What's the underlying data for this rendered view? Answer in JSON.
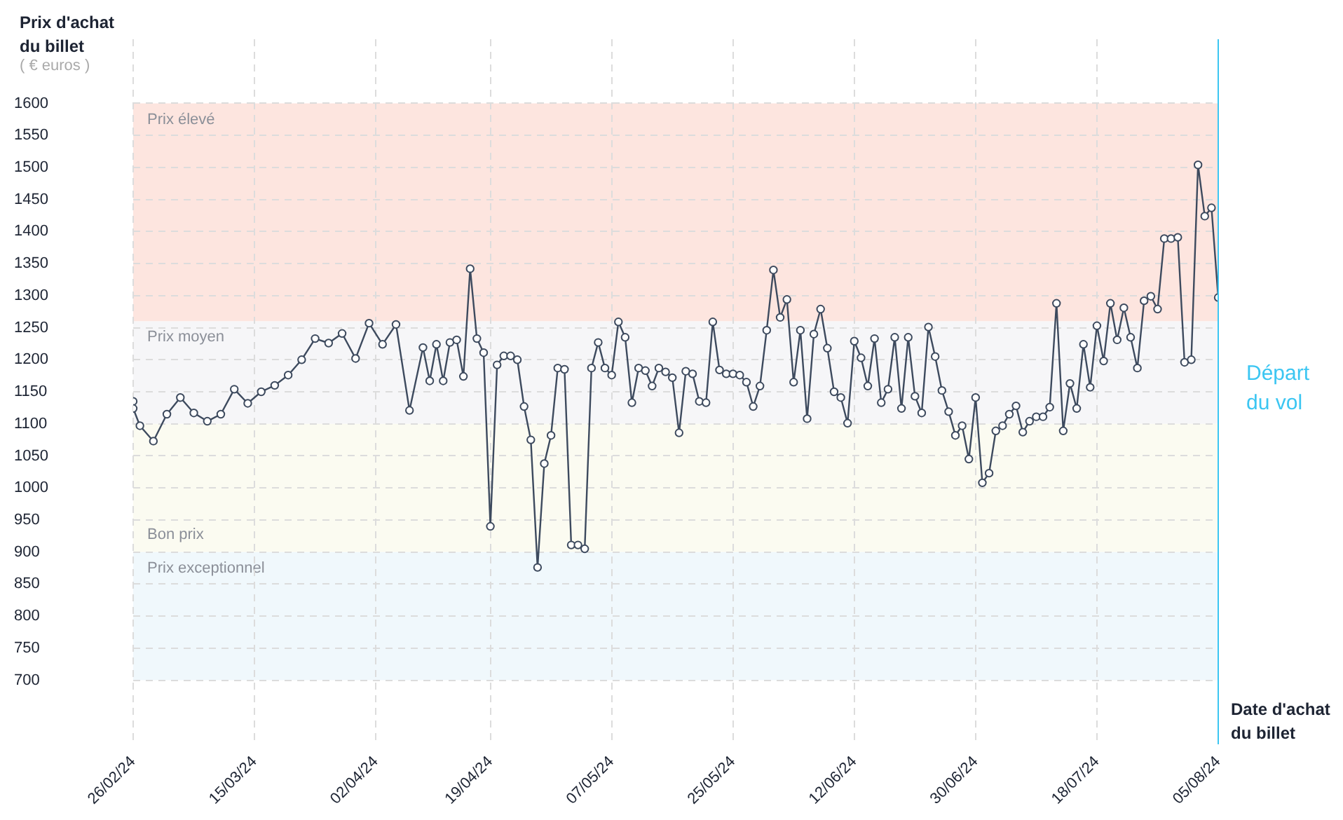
{
  "chart_data": {
    "type": "line",
    "ylabel": "Prix d'achat du billet",
    "xlabel": "Date d'achat du billet",
    "annotations": [
      "( € euros )"
    ],
    "x": [
      "2024-02-26",
      "2024-02-26",
      "2024-02-27",
      "2024-02-29",
      "2024-03-02",
      "2024-03-04",
      "2024-03-06",
      "2024-03-08",
      "2024-03-10",
      "2024-03-12",
      "2024-03-14",
      "2024-03-16",
      "2024-03-18",
      "2024-03-20",
      "2024-03-22",
      "2024-03-24",
      "2024-03-26",
      "2024-03-28",
      "2024-03-30",
      "2024-04-01",
      "2024-04-03",
      "2024-04-05",
      "2024-04-07",
      "2024-04-09",
      "2024-04-10",
      "2024-04-11",
      "2024-04-12",
      "2024-04-13",
      "2024-04-14",
      "2024-04-15",
      "2024-04-16",
      "2024-04-17",
      "2024-04-18",
      "2024-04-19",
      "2024-04-20",
      "2024-04-21",
      "2024-04-22",
      "2024-04-23",
      "2024-04-24",
      "2024-04-25",
      "2024-04-26",
      "2024-04-27",
      "2024-04-28",
      "2024-04-29",
      "2024-04-30",
      "2024-05-01",
      "2024-05-02",
      "2024-05-03",
      "2024-05-04",
      "2024-05-05",
      "2024-05-06",
      "2024-05-07",
      "2024-05-08",
      "2024-05-09",
      "2024-05-10",
      "2024-05-11",
      "2024-05-12",
      "2024-05-13",
      "2024-05-14",
      "2024-05-15",
      "2024-05-16",
      "2024-05-17",
      "2024-05-18",
      "2024-05-19",
      "2024-05-20",
      "2024-05-21",
      "2024-05-22",
      "2024-05-23",
      "2024-05-24",
      "2024-05-25",
      "2024-05-26",
      "2024-05-27",
      "2024-05-28",
      "2024-05-29",
      "2024-05-30",
      "2024-05-31",
      "2024-06-01",
      "2024-06-02",
      "2024-06-03",
      "2024-06-04",
      "2024-06-05",
      "2024-06-06",
      "2024-06-07",
      "2024-06-08",
      "2024-06-09",
      "2024-06-10",
      "2024-06-11",
      "2024-06-12",
      "2024-06-13",
      "2024-06-14",
      "2024-06-15",
      "2024-06-16",
      "2024-06-17",
      "2024-06-18",
      "2024-06-19",
      "2024-06-20",
      "2024-06-21",
      "2024-06-22",
      "2024-06-23",
      "2024-06-24",
      "2024-06-25",
      "2024-06-26",
      "2024-06-27",
      "2024-06-28",
      "2024-06-29",
      "2024-06-30",
      "2024-07-01",
      "2024-07-02",
      "2024-07-03",
      "2024-07-04",
      "2024-07-05",
      "2024-07-06",
      "2024-07-07",
      "2024-07-08",
      "2024-07-09",
      "2024-07-10",
      "2024-07-11",
      "2024-07-12",
      "2024-07-13",
      "2024-07-14",
      "2024-07-15",
      "2024-07-16",
      "2024-07-17",
      "2024-07-18",
      "2024-07-19",
      "2024-07-20",
      "2024-07-21",
      "2024-07-22",
      "2024-07-23",
      "2024-07-24",
      "2024-07-25",
      "2024-07-26",
      "2024-07-27",
      "2024-07-28",
      "2024-07-29",
      "2024-07-30",
      "2024-07-31",
      "2024-08-01",
      "2024-08-02",
      "2024-08-03",
      "2024-08-04",
      "2024-08-05"
    ],
    "values": [
      1135,
      1124,
      1097,
      1073,
      1115,
      1141,
      1117,
      1104,
      1115,
      1154,
      1132,
      1150,
      1160,
      1176,
      1200,
      1233,
      1226,
      1241,
      1202,
      1257,
      1224,
      1255,
      1121,
      1219,
      1167,
      1224,
      1167,
      1227,
      1231,
      1174,
      1342,
      1233,
      1211,
      940,
      1192,
      1206,
      1206,
      1200,
      1127,
      1075,
      876,
      1038,
      1082,
      1187,
      1185,
      911,
      911,
      905,
      1187,
      1227,
      1187,
      1176,
      1259,
      1235,
      1133,
      1187,
      1183,
      1159,
      1187,
      1181,
      1172,
      1086,
      1182,
      1178,
      1135,
      1133,
      1259,
      1184,
      1178,
      1178,
      1176,
      1165,
      1127,
      1159,
      1246,
      1340,
      1266,
      1294,
      1165,
      1246,
      1108,
      1240,
      1279,
      1218,
      1150,
      1141,
      1101,
      1229,
      1203,
      1159,
      1233,
      1133,
      1154,
      1235,
      1124,
      1235,
      1143,
      1117,
      1251,
      1205,
      1152,
      1119,
      1082,
      1097,
      1045,
      1141,
      1008,
      1023,
      1089,
      1097,
      1115,
      1128,
      1087,
      1104,
      1111,
      1111,
      1126,
      1288,
      1089,
      1163,
      1124,
      1224,
      1157,
      1253,
      1198,
      1288,
      1231,
      1281,
      1235,
      1187,
      1292,
      1299,
      1279,
      1389,
      1389,
      1391,
      1196,
      1200,
      1504,
      1424,
      1437,
      1297
    ],
    "color": "#3d4a5e",
    "marker": "circle",
    "grid": true,
    "xlim": [
      "2024-02-26",
      "2024-08-05"
    ],
    "xticks": [
      {
        "value": "2024-02-26",
        "label": "26/02/24"
      },
      {
        "value": "2024-03-15",
        "label": "15/03/24"
      },
      {
        "value": "2024-04-02",
        "label": "02/04/24"
      },
      {
        "value": "2024-04-19",
        "label": "19/04/24"
      },
      {
        "value": "2024-05-07",
        "label": "07/05/24"
      },
      {
        "value": "2024-05-25",
        "label": "25/05/24"
      },
      {
        "value": "2024-06-12",
        "label": "12/06/24"
      },
      {
        "value": "2024-06-30",
        "label": "30/06/24"
      },
      {
        "value": "2024-07-18",
        "label": "18/07/24"
      },
      {
        "value": "2024-08-05",
        "label": "05/08/24"
      }
    ],
    "ylim": [
      600,
      1700
    ],
    "yticks": [
      700,
      750,
      800,
      850,
      900,
      950,
      1000,
      1050,
      1100,
      1150,
      1200,
      1250,
      1300,
      1350,
      1400,
      1450,
      1500,
      1550,
      1600
    ],
    "bands": [
      {
        "axis": "y",
        "from": 1260,
        "to": 1600,
        "label": "Prix élevé",
        "color": "#fde5df"
      },
      {
        "axis": "y",
        "from": 1100,
        "to": 1260,
        "label": "Prix moyen",
        "color": "#f6f6f8"
      },
      {
        "axis": "y",
        "from": 900,
        "to": 1100,
        "label": "Bon prix",
        "color": "#fbfbf1"
      },
      {
        "axis": "y",
        "from": 700,
        "to": 900,
        "label": "Prix exceptionnel",
        "color": "#f0f8fc"
      }
    ],
    "ref_lines": [
      {
        "axis": "x",
        "value": "2024-08-05",
        "label": "Départ du vol",
        "color": "#3cc6f2"
      }
    ]
  }
}
